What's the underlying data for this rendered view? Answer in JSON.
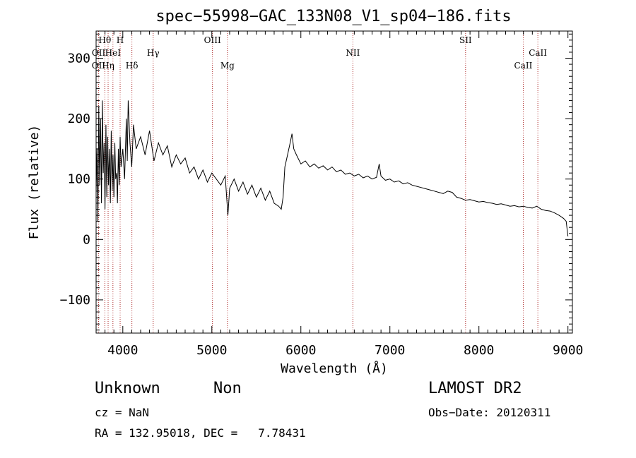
{
  "chart_data": {
    "type": "line",
    "title": "spec−55998−GAC_133N08_V1_sp04−186.fits",
    "xlabel": "Wavelength (Å)",
    "ylabel": "Flux (relative)",
    "xlim": [
      3700,
      9050
    ],
    "ylim": [
      -155,
      345
    ],
    "x_ticks": [
      4000,
      5000,
      6000,
      7000,
      8000,
      9000
    ],
    "y_ticks": [
      -100,
      0,
      100,
      200,
      300
    ],
    "y_tick_labels": [
      "−100",
      "0",
      "100",
      "200",
      "300"
    ],
    "spectrum": {
      "name": "flux",
      "points": [
        [
          3700,
          80
        ],
        [
          3710,
          150
        ],
        [
          3720,
          30
        ],
        [
          3730,
          220
        ],
        [
          3740,
          90
        ],
        [
          3750,
          200
        ],
        [
          3760,
          60
        ],
        [
          3770,
          230
        ],
        [
          3780,
          110
        ],
        [
          3790,
          160
        ],
        [
          3800,
          50
        ],
        [
          3810,
          190
        ],
        [
          3820,
          70
        ],
        [
          3830,
          170
        ],
        [
          3840,
          90
        ],
        [
          3850,
          150
        ],
        [
          3860,
          60
        ],
        [
          3870,
          180
        ],
        [
          3880,
          80
        ],
        [
          3890,
          140
        ],
        [
          3900,
          70
        ],
        [
          3910,
          160
        ],
        [
          3920,
          100
        ],
        [
          3930,
          110
        ],
        [
          3940,
          60
        ],
        [
          3950,
          150
        ],
        [
          3960,
          90
        ],
        [
          3970,
          170
        ],
        [
          3980,
          120
        ],
        [
          4000,
          150
        ],
        [
          4020,
          100
        ],
        [
          4040,
          200
        ],
        [
          4050,
          130
        ],
        [
          4060,
          230
        ],
        [
          4080,
          160
        ],
        [
          4100,
          120
        ],
        [
          4120,
          190
        ],
        [
          4150,
          150
        ],
        [
          4200,
          170
        ],
        [
          4250,
          140
        ],
        [
          4300,
          180
        ],
        [
          4350,
          130
        ],
        [
          4400,
          160
        ],
        [
          4450,
          140
        ],
        [
          4500,
          155
        ],
        [
          4550,
          120
        ],
        [
          4600,
          140
        ],
        [
          4650,
          125
        ],
        [
          4700,
          135
        ],
        [
          4750,
          110
        ],
        [
          4800,
          120
        ],
        [
          4850,
          100
        ],
        [
          4900,
          115
        ],
        [
          4950,
          95
        ],
        [
          5000,
          110
        ],
        [
          5050,
          100
        ],
        [
          5100,
          90
        ],
        [
          5150,
          105
        ],
        [
          5180,
          40
        ],
        [
          5200,
          85
        ],
        [
          5250,
          100
        ],
        [
          5300,
          80
        ],
        [
          5350,
          95
        ],
        [
          5400,
          75
        ],
        [
          5450,
          90
        ],
        [
          5500,
          70
        ],
        [
          5550,
          85
        ],
        [
          5600,
          65
        ],
        [
          5650,
          80
        ],
        [
          5700,
          60
        ],
        [
          5750,
          55
        ],
        [
          5780,
          50
        ],
        [
          5800,
          70
        ],
        [
          5820,
          120
        ],
        [
          5850,
          140
        ],
        [
          5880,
          160
        ],
        [
          5900,
          175
        ],
        [
          5920,
          150
        ],
        [
          5950,
          140
        ],
        [
          6000,
          125
        ],
        [
          6050,
          130
        ],
        [
          6100,
          120
        ],
        [
          6150,
          125
        ],
        [
          6200,
          118
        ],
        [
          6250,
          122
        ],
        [
          6300,
          115
        ],
        [
          6350,
          120
        ],
        [
          6400,
          112
        ],
        [
          6450,
          115
        ],
        [
          6500,
          108
        ],
        [
          6550,
          110
        ],
        [
          6600,
          105
        ],
        [
          6650,
          108
        ],
        [
          6700,
          102
        ],
        [
          6750,
          105
        ],
        [
          6800,
          100
        ],
        [
          6850,
          103
        ],
        [
          6880,
          125
        ],
        [
          6900,
          105
        ],
        [
          6950,
          98
        ],
        [
          7000,
          100
        ],
        [
          7050,
          95
        ],
        [
          7100,
          97
        ],
        [
          7150,
          92
        ],
        [
          7200,
          94
        ],
        [
          7250,
          90
        ],
        [
          7300,
          88
        ],
        [
          7350,
          86
        ],
        [
          7400,
          84
        ],
        [
          7450,
          82
        ],
        [
          7500,
          80
        ],
        [
          7550,
          78
        ],
        [
          7600,
          76
        ],
        [
          7650,
          80
        ],
        [
          7700,
          78
        ],
        [
          7750,
          70
        ],
        [
          7800,
          68
        ],
        [
          7850,
          65
        ],
        [
          7900,
          66
        ],
        [
          7950,
          64
        ],
        [
          8000,
          62
        ],
        [
          8050,
          63
        ],
        [
          8100,
          61
        ],
        [
          8150,
          60
        ],
        [
          8200,
          58
        ],
        [
          8250,
          59
        ],
        [
          8300,
          57
        ],
        [
          8350,
          55
        ],
        [
          8400,
          56
        ],
        [
          8450,
          54
        ],
        [
          8500,
          55
        ],
        [
          8550,
          53
        ],
        [
          8600,
          52
        ],
        [
          8650,
          55
        ],
        [
          8700,
          50
        ],
        [
          8750,
          48
        ],
        [
          8800,
          47
        ],
        [
          8850,
          44
        ],
        [
          8900,
          40
        ],
        [
          8950,
          35
        ],
        [
          8980,
          30
        ],
        [
          9000,
          5
        ]
      ]
    },
    "lines": [
      {
        "name": "Hθ",
        "wavelength": 3798,
        "row": 1
      },
      {
        "name": "H",
        "wavelength": 3970,
        "row": 1
      },
      {
        "name": "OII",
        "wavelength": 3728,
        "row": 2
      },
      {
        "name": "HeI",
        "wavelength": 3889,
        "row": 2
      },
      {
        "name": "Hγ",
        "wavelength": 4341,
        "row": 2
      },
      {
        "name": "CaII",
        "wavelength": 8662,
        "row": 2
      },
      {
        "name": "OIII",
        "wavelength": 5007,
        "row": 1
      },
      {
        "name": "SII",
        "wavelength": 7850,
        "row": 1
      },
      {
        "name": "NII",
        "wavelength": 6584,
        "row": 2
      },
      {
        "name": "OII",
        "wavelength": 3727,
        "row": 3
      },
      {
        "name": "Hη",
        "wavelength": 3835,
        "row": 3
      },
      {
        "name": "Hδ",
        "wavelength": 4102,
        "row": 3
      },
      {
        "name": "Mg",
        "wavelength": 5175,
        "row": 3
      },
      {
        "name": "CaII",
        "wavelength": 8498,
        "row": 3
      }
    ],
    "line_color": "#b03030"
  },
  "info": {
    "class_label": "Unknown",
    "subclass_label": "Non",
    "survey": "LAMOST DR2",
    "cz": "cz = NaN",
    "obs_date": "Obs−Date: 20120311",
    "coords": "RA = 132.95018, DEC =   7.78431"
  }
}
